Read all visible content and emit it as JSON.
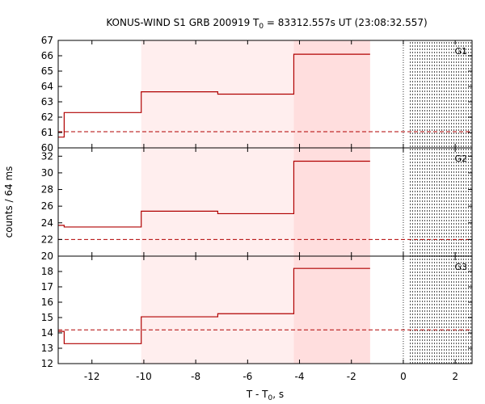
{
  "chart_data": {
    "type": "line",
    "title": {
      "prefix": "KONUS-WIND S1 GRB 200919 T",
      "sub": "0",
      "suffix": " = 83312.557s UT (23:08:32.557)"
    },
    "xlabel": {
      "prefix": "T - T",
      "sub": "0",
      "suffix": ", s"
    },
    "ylabel": "counts / 64 ms",
    "xlim": [
      -13.3,
      2.65
    ],
    "x_ticks": [
      -12,
      -10,
      -8,
      -6,
      -4,
      -2,
      0,
      2
    ],
    "x_tick_labels": [
      "-12",
      "-10",
      "-8",
      "-6",
      "-4",
      "-2",
      "0",
      "2"
    ],
    "shaded_regions": [
      {
        "x": [
          -10.1,
          -1.28
        ],
        "color": "#ffeeee"
      },
      {
        "x": [
          -4.22,
          -1.28
        ],
        "color": "#ffdede"
      }
    ],
    "t0_marker_x": 0,
    "hatched_region_x": [
      0.22,
      2.65
    ],
    "colors": {
      "step": "#b00000",
      "background_line": "#b00000",
      "hatch": "#555555"
    },
    "panels": [
      {
        "name": "G1",
        "ylim": [
          60,
          67
        ],
        "y_ticks": [
          60,
          61,
          62,
          63,
          64,
          65,
          66,
          67
        ],
        "y_tick_labels": [
          "60",
          "61",
          "62",
          "63",
          "64",
          "65",
          "66",
          "67"
        ],
        "background": 61.05,
        "steps": [
          {
            "x0": -13.3,
            "x1": -13.07,
            "y": 60.7
          },
          {
            "x0": -13.07,
            "x1": -10.1,
            "y": 62.3
          },
          {
            "x0": -10.1,
            "x1": -7.15,
            "y": 63.65
          },
          {
            "x0": -7.15,
            "x1": -4.22,
            "y": 63.5
          },
          {
            "x0": -4.22,
            "x1": -1.28,
            "y": 66.1
          }
        ]
      },
      {
        "name": "G2",
        "ylim": [
          20,
          33
        ],
        "y_ticks": [
          20,
          22,
          24,
          26,
          28,
          30,
          32
        ],
        "y_tick_labels": [
          "20",
          "22",
          "24",
          "26",
          "28",
          "30",
          "32"
        ],
        "background": 22.0,
        "steps": [
          {
            "x0": -13.3,
            "x1": -13.07,
            "y": 23.7
          },
          {
            "x0": -13.07,
            "x1": -10.1,
            "y": 23.5
          },
          {
            "x0": -10.1,
            "x1": -7.15,
            "y": 25.4
          },
          {
            "x0": -7.15,
            "x1": -4.22,
            "y": 25.1
          },
          {
            "x0": -4.22,
            "x1": -1.28,
            "y": 31.4
          }
        ]
      },
      {
        "name": "G3",
        "ylim": [
          12,
          19
        ],
        "y_ticks": [
          12,
          13,
          14,
          15,
          16,
          17,
          18
        ],
        "y_tick_labels": [
          "12",
          "13",
          "14",
          "15",
          "16",
          "17",
          "18"
        ],
        "background": 14.2,
        "steps": [
          {
            "x0": -13.3,
            "x1": -13.07,
            "y": 14.1
          },
          {
            "x0": -13.07,
            "x1": -10.1,
            "y": 13.3
          },
          {
            "x0": -10.1,
            "x1": -7.15,
            "y": 15.05
          },
          {
            "x0": -7.15,
            "x1": -4.22,
            "y": 15.25
          },
          {
            "x0": -4.22,
            "x1": -1.28,
            "y": 18.2
          }
        ]
      }
    ]
  }
}
